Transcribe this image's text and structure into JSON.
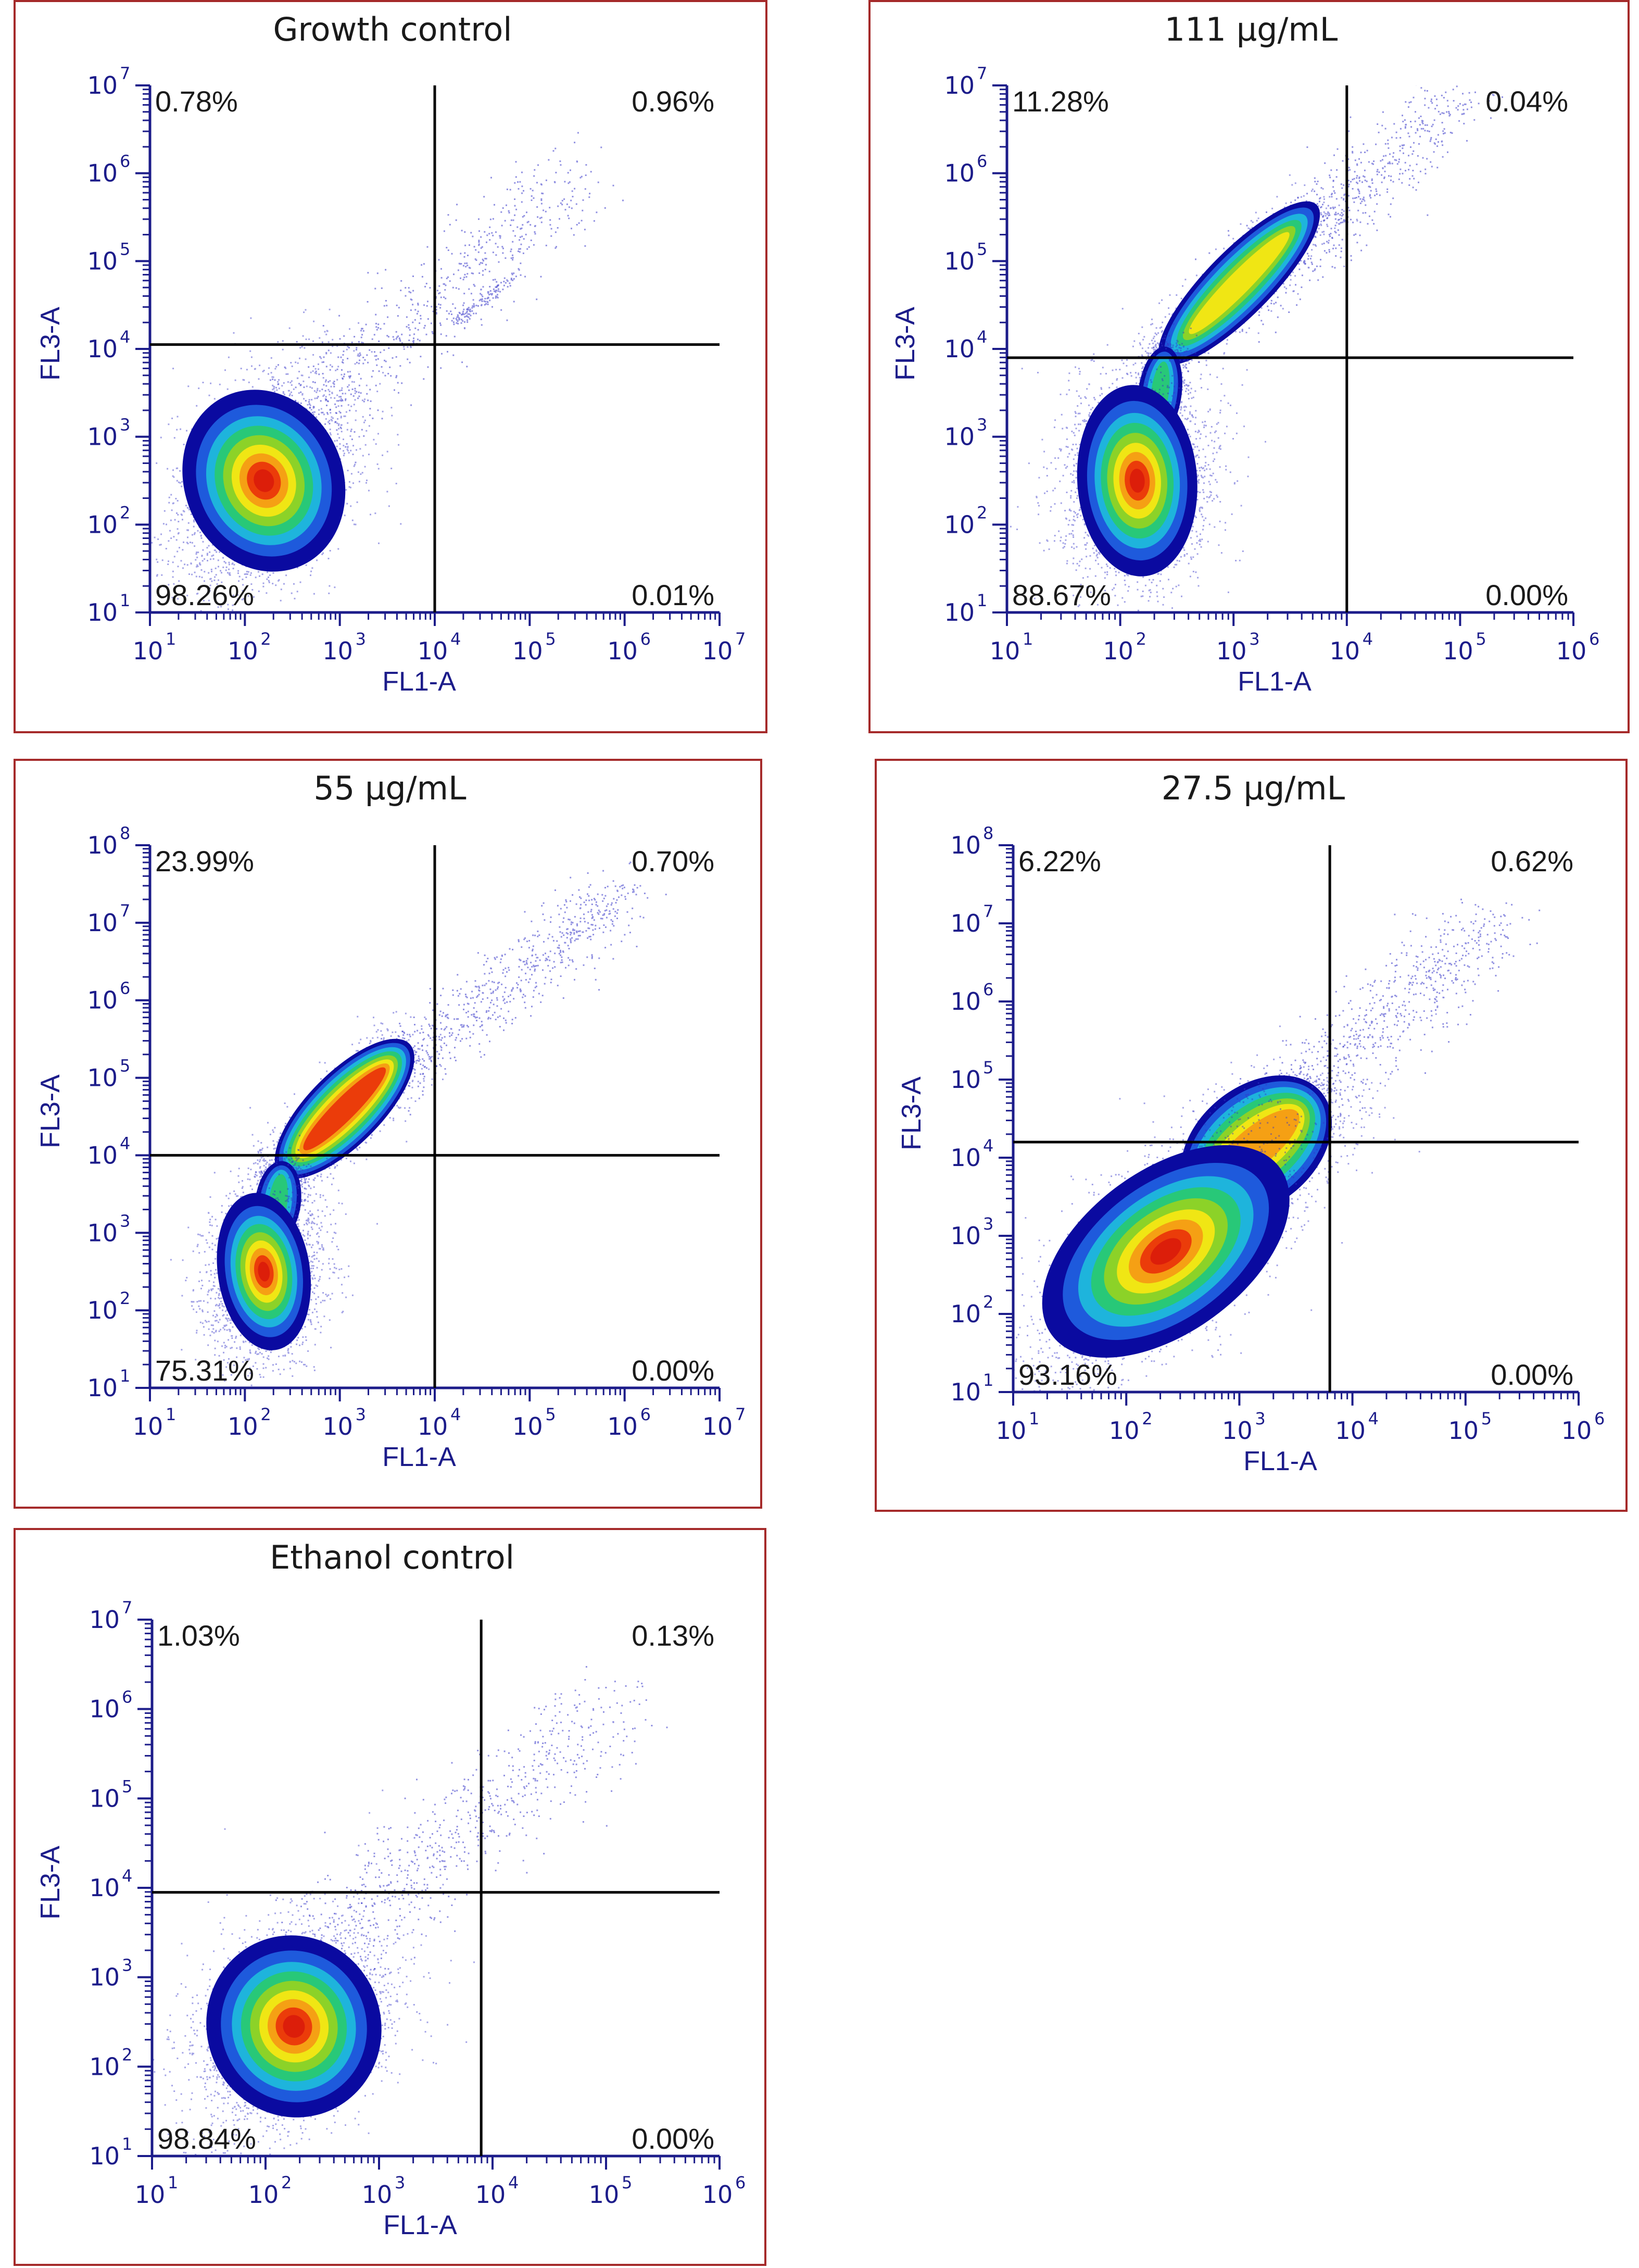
{
  "colors": {
    "border": "#a52a2a",
    "axis": "#1c1c8a",
    "gate": "#000000",
    "dots": "#3434c8",
    "density": [
      "#0a0aa0",
      "#1e5adc",
      "#1eb4dc",
      "#28c878",
      "#8cd228",
      "#f0e614",
      "#f5a014",
      "#eb3c0a",
      "#dc1e0a"
    ]
  },
  "chart_data": [
    {
      "id": "growth",
      "type": "scatter",
      "title": "Growth control",
      "xlabel": "FL1-A",
      "ylabel": "FL3-A",
      "xlim_decades": [
        1,
        7
      ],
      "ylim_decades": [
        1,
        7
      ],
      "x_ticks": [
        "10",
        "10",
        "10",
        "10",
        "10",
        "10",
        "10"
      ],
      "x_tick_exponents": [
        "1",
        "2",
        "3",
        "4",
        "5",
        "6",
        "7"
      ],
      "y_ticks": [
        "10",
        "10",
        "10",
        "10",
        "10",
        "10",
        "10"
      ],
      "y_tick_exponents": [
        "1",
        "2",
        "3",
        "4",
        "5",
        "6",
        "7"
      ],
      "gate": {
        "x_log10": 4.0,
        "y_log10": 4.05
      },
      "quadrants": {
        "ul": "0.78%",
        "ur": "0.96%",
        "ll": "98.26%",
        "lr": "0.01%"
      },
      "populations": [
        {
          "cx": 2.2,
          "cy": 2.5,
          "sx": 0.32,
          "sy": 0.42,
          "rho": 0.35,
          "weight": 1.0
        }
      ],
      "tail": {
        "from": [
          2.4,
          3.0
        ],
        "to": [
          5.5,
          6.0
        ],
        "spread": 0.45
      },
      "extra": [
        {
          "from": [
            4.2,
            4.3
          ],
          "to": [
            4.9,
            4.9
          ],
          "spread": 0.06
        }
      ]
    },
    {
      "id": "c111",
      "type": "scatter",
      "title": "111 µg/mL",
      "xlabel": "FL1-A",
      "ylabel": "FL3-A",
      "xlim_decades": [
        1,
        6
      ],
      "ylim_decades": [
        1,
        7
      ],
      "x_ticks": [
        "10",
        "10",
        "10",
        "10",
        "10",
        "10"
      ],
      "x_tick_exponents": [
        "1",
        "2",
        "3",
        "4",
        "5",
        "6"
      ],
      "y_ticks": [
        "10",
        "10",
        "10",
        "10",
        "10",
        "10",
        "10"
      ],
      "y_tick_exponents": [
        "1",
        "2",
        "3",
        "4",
        "5",
        "6",
        "7"
      ],
      "gate": {
        "x_log10": 4.0,
        "y_log10": 3.9
      },
      "quadrants": {
        "ul": "11.28%",
        "ur": "0.04%",
        "ll": "88.67%",
        "lr": "0.00%"
      },
      "populations": [
        {
          "cx": 2.15,
          "cy": 2.5,
          "sx": 0.22,
          "sy": 0.38,
          "rho": 0.05,
          "weight": 1.0
        }
      ],
      "bridge": {
        "from": [
          2.3,
          3.0
        ],
        "to": [
          2.4,
          4.0
        ],
        "width": 0.08
      },
      "branch": {
        "from": [
          2.4,
          3.9
        ],
        "to": [
          3.7,
          5.6
        ],
        "width": 0.12,
        "weight": 0.45
      },
      "tail": {
        "from": [
          3.0,
          4.5
        ],
        "to": [
          5.0,
          6.9
        ],
        "spread": 0.35
      }
    },
    {
      "id": "c55",
      "type": "scatter",
      "title": "55 µg/mL",
      "xlabel": "FL1-A",
      "ylabel": "FL3-A",
      "xlim_decades": [
        1,
        7
      ],
      "ylim_decades": [
        1,
        8
      ],
      "x_ticks": [
        "10",
        "10",
        "10",
        "10",
        "10",
        "10",
        "10"
      ],
      "x_tick_exponents": [
        "1",
        "2",
        "3",
        "4",
        "5",
        "6",
        "7"
      ],
      "y_ticks": [
        "10",
        "10",
        "10",
        "10",
        "10",
        "10",
        "10",
        "10"
      ],
      "y_tick_exponents": [
        "1",
        "2",
        "3",
        "4",
        "5",
        "6",
        "7",
        "8"
      ],
      "gate": {
        "x_log10": 4.0,
        "y_log10": 4.0
      },
      "quadrants": {
        "ul": "23.99%",
        "ur": "0.70%",
        "ll": "75.31%",
        "lr": "0.00%"
      },
      "populations": [
        {
          "cx": 2.2,
          "cy": 2.5,
          "sx": 0.2,
          "sy": 0.36,
          "rho": 0.1,
          "weight": 1.0
        }
      ],
      "bridge": {
        "from": [
          2.3,
          2.9
        ],
        "to": [
          2.4,
          3.9
        ],
        "width": 0.1
      },
      "branch": {
        "from": [
          2.4,
          3.8
        ],
        "to": [
          3.7,
          5.4
        ],
        "width": 0.16,
        "weight": 0.7
      },
      "tail": {
        "from": [
          3.5,
          5.0
        ],
        "to": [
          6.0,
          7.4
        ],
        "spread": 0.35
      }
    },
    {
      "id": "c27",
      "type": "scatter",
      "title": "27.5 µg/mL",
      "xlabel": "FL1-A",
      "ylabel": "FL3-A",
      "xlim_decades": [
        1,
        6
      ],
      "ylim_decades": [
        1,
        8
      ],
      "x_ticks": [
        "10",
        "10",
        "10",
        "10",
        "10",
        "10"
      ],
      "x_tick_exponents": [
        "1",
        "2",
        "3",
        "4",
        "5",
        "6"
      ],
      "y_ticks": [
        "10",
        "10",
        "10",
        "10",
        "10",
        "10",
        "10",
        "10"
      ],
      "y_tick_exponents": [
        "1",
        "2",
        "3",
        "4",
        "5",
        "6",
        "7",
        "8"
      ],
      "gate": {
        "x_log10": 3.8,
        "y_log10": 4.2
      },
      "quadrants": {
        "ul": "6.22%",
        "ur": "0.62%",
        "ll": "93.16%",
        "lr": "0.00%"
      },
      "populations": [
        {
          "cx": 2.35,
          "cy": 2.8,
          "sx": 0.42,
          "sy": 0.62,
          "rho": 0.72,
          "weight": 1.0
        }
      ],
      "branch": {
        "from": [
          2.6,
          3.5
        ],
        "to": [
          3.7,
          4.8
        ],
        "width": 0.22,
        "weight": 0.5
      },
      "tail": {
        "from": [
          3.3,
          4.5
        ],
        "to": [
          5.2,
          7.0
        ],
        "spread": 0.4
      }
    },
    {
      "id": "ethanol",
      "type": "scatter",
      "title": "Ethanol control",
      "xlabel": "FL1-A",
      "ylabel": "FL3-A",
      "xlim_decades": [
        1,
        6
      ],
      "ylim_decades": [
        1,
        7
      ],
      "x_ticks": [
        "10",
        "10",
        "10",
        "10",
        "10",
        "10"
      ],
      "x_tick_exponents": [
        "1",
        "2",
        "3",
        "4",
        "5",
        "6"
      ],
      "y_ticks": [
        "10",
        "10",
        "10",
        "10",
        "10",
        "10",
        "10"
      ],
      "y_tick_exponents": [
        "1",
        "2",
        "3",
        "4",
        "5",
        "6",
        "7"
      ],
      "gate": {
        "x_log10": 3.9,
        "y_log10": 3.95
      },
      "quadrants": {
        "ul": "1.03%",
        "ur": "0.13%",
        "ll": "98.84%",
        "lr": "0.00%"
      },
      "populations": [
        {
          "cx": 2.25,
          "cy": 2.45,
          "sx": 0.3,
          "sy": 0.4,
          "rho": 0.35,
          "weight": 1.0
        }
      ],
      "tail": {
        "from": [
          2.4,
          3.2
        ],
        "to": [
          5.0,
          6.0
        ],
        "spread": 0.45
      }
    }
  ]
}
